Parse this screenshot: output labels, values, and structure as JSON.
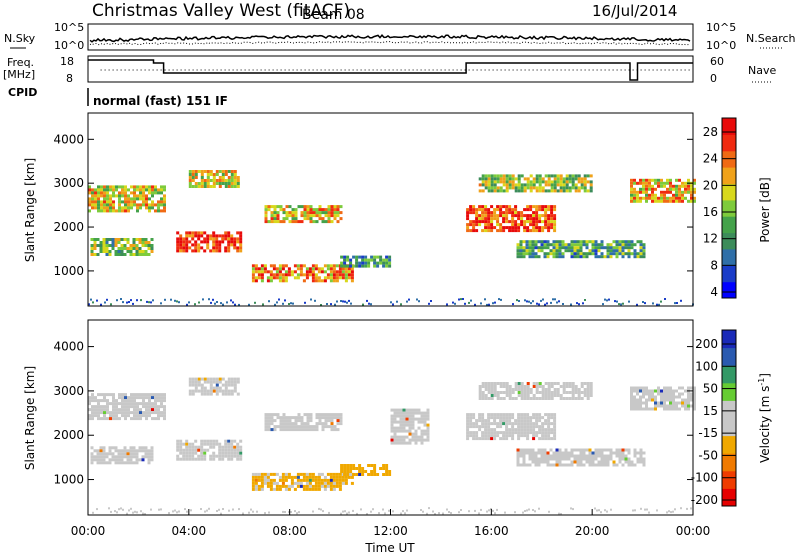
{
  "header": {
    "title": "Christmas Valley West (fitACF)",
    "beam": "Beam 08",
    "date": "16/Jul/2014"
  },
  "param_panel": {
    "nsky_label": "N.Sky",
    "nsearch_label": "N.Search",
    "noise_ticks_left": [
      "10^5",
      "10^0"
    ],
    "noise_ticks_right": [
      "10^5",
      "10^0"
    ],
    "freq_label_1": "Freq.",
    "freq_label_2": "[MHz]",
    "freq_ticks": [
      "18",
      "8"
    ],
    "nave_label": "Nave",
    "nave_ticks": [
      "60",
      "0"
    ],
    "cpid_label": "CPID",
    "cpid_text": "normal (fast) 151 IF"
  },
  "chart_data": [
    {
      "type": "heatmap",
      "title": "",
      "ylabel": "Slant Range [km]",
      "xlabel": "",
      "xlim": [
        0,
        24
      ],
      "ylim": [
        200,
        4600
      ],
      "y_ticks": [
        "1000",
        "2000",
        "3000",
        "4000"
      ],
      "colorbar": {
        "label": "Power [dB]",
        "ticks": [
          "28",
          "24",
          "20",
          "16",
          "12",
          "8",
          "4"
        ],
        "range": [
          0,
          30
        ],
        "colors": [
          "#0000ff",
          "#1a3cc8",
          "#2f6fa8",
          "#3c8c5a",
          "#44a24a",
          "#7ecb3c",
          "#d8d81c",
          "#f0a21a",
          "#f06a14",
          "#f02a10",
          "#e80a0a"
        ]
      },
      "echo_bands": [
        {
          "t": [
            0.0,
            3.0
          ],
          "r": [
            2400,
            2950
          ],
          "power": 18
        },
        {
          "t": [
            0.1,
            2.5
          ],
          "r": [
            1350,
            1750
          ],
          "power": 14
        },
        {
          "t": [
            3.5,
            6.0
          ],
          "r": [
            1450,
            1900
          ],
          "power": 27
        },
        {
          "t": [
            4.0,
            6.0
          ],
          "r": [
            2900,
            3300
          ],
          "power": 18
        },
        {
          "t": [
            6.5,
            10.5
          ],
          "r": [
            800,
            1150
          ],
          "power": 22
        },
        {
          "t": [
            7.0,
            10.0
          ],
          "r": [
            2100,
            2500
          ],
          "power": 19
        },
        {
          "t": [
            10.0,
            12.0
          ],
          "r": [
            1100,
            1350
          ],
          "power": 10
        },
        {
          "t": [
            15.0,
            18.5
          ],
          "r": [
            1900,
            2500
          ],
          "power": 25
        },
        {
          "t": [
            15.5,
            20.0
          ],
          "r": [
            2800,
            3200
          ],
          "power": 15
        },
        {
          "t": [
            17.0,
            22.0
          ],
          "r": [
            1300,
            1700
          ],
          "power": 12
        },
        {
          "t": [
            21.5,
            24.0
          ],
          "r": [
            2600,
            3100
          ],
          "power": 20
        }
      ]
    },
    {
      "type": "heatmap",
      "title": "",
      "ylabel": "Slant Range [km]",
      "xlabel": "Time UT",
      "xlim": [
        0,
        24
      ],
      "ylim": [
        200,
        4600
      ],
      "y_ticks": [
        "1000",
        "2000",
        "3000",
        "4000"
      ],
      "x_ticks": [
        "00:00",
        "04:00",
        "08:00",
        "12:00",
        "16:00",
        "20:00",
        "00:00"
      ],
      "colorbar": {
        "label": "Velocity [m s^-1]",
        "ticks": [
          "200",
          "100",
          "50",
          "15",
          "-15",
          "-50",
          "-100",
          "-200"
        ],
        "range": [
          -250,
          250
        ],
        "colors": [
          "#e60000",
          "#f03c00",
          "#f07a00",
          "#f0a800",
          "#c8c8c8",
          "#c8c8c8",
          "#66cc33",
          "#339966",
          "#2a5ab0",
          "#1a2ab8"
        ]
      },
      "echo_bands": [
        {
          "t": [
            0.0,
            3.0
          ],
          "r": [
            2400,
            2950
          ],
          "velocity": 0
        },
        {
          "t": [
            0.1,
            2.5
          ],
          "r": [
            1350,
            1750
          ],
          "velocity": 0
        },
        {
          "t": [
            3.5,
            6.0
          ],
          "r": [
            1450,
            1900
          ],
          "velocity": 0
        },
        {
          "t": [
            4.0,
            6.0
          ],
          "r": [
            2900,
            3300
          ],
          "velocity": 0
        },
        {
          "t": [
            6.5,
            10.5
          ],
          "r": [
            800,
            1150
          ],
          "velocity": -60
        },
        {
          "t": [
            7.0,
            10.0
          ],
          "r": [
            2100,
            2500
          ],
          "velocity": 0
        },
        {
          "t": [
            10.0,
            12.0
          ],
          "r": [
            1100,
            1350
          ],
          "velocity": -80
        },
        {
          "t": [
            12.0,
            13.5
          ],
          "r": [
            1800,
            2600
          ],
          "velocity": 30
        },
        {
          "t": [
            15.0,
            18.5
          ],
          "r": [
            1900,
            2500
          ],
          "velocity": 0
        },
        {
          "t": [
            15.5,
            20.0
          ],
          "r": [
            2800,
            3200
          ],
          "velocity": 0
        },
        {
          "t": [
            17.0,
            22.0
          ],
          "r": [
            1300,
            1700
          ],
          "velocity": 0
        },
        {
          "t": [
            21.5,
            24.0
          ],
          "r": [
            2600,
            3100
          ],
          "velocity": 0
        }
      ]
    }
  ]
}
